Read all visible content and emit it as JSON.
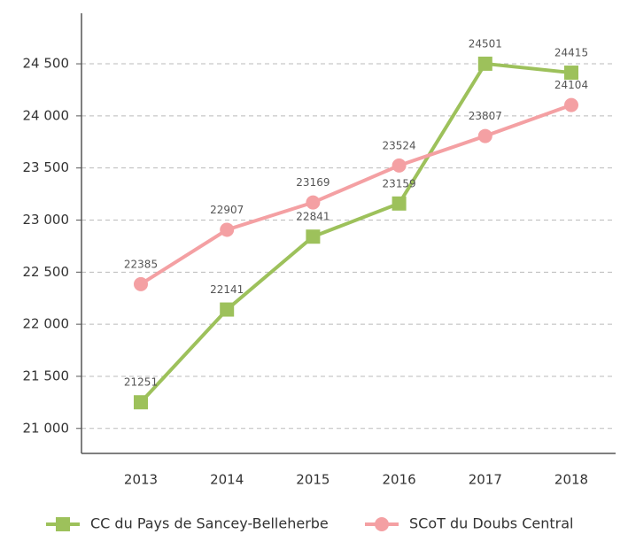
{
  "chart_data": {
    "type": "line",
    "categories": [
      "2013",
      "2014",
      "2015",
      "2016",
      "2017",
      "2018"
    ],
    "series": [
      {
        "name": "CC du Pays de Sancey-Belleherbe",
        "color": "#9dc15b",
        "marker": "square",
        "values": [
          21251,
          22141,
          22841,
          23159,
          24501,
          24415
        ]
      },
      {
        "name": "SCoT du Doubs Central",
        "color": "#f4a0a3",
        "marker": "circle",
        "values": [
          22385,
          22907,
          23169,
          23524,
          23807,
          24104
        ]
      }
    ],
    "ylim": [
      20760,
      24985
    ],
    "yticks": [
      {
        "value": 21000,
        "label": "21 000"
      },
      {
        "value": 21500,
        "label": "21 500"
      },
      {
        "value": 22000,
        "label": "22 000"
      },
      {
        "value": 22500,
        "label": "22 500"
      },
      {
        "value": 23000,
        "label": "23 000"
      },
      {
        "value": 23500,
        "label": "23 500"
      },
      {
        "value": 24000,
        "label": "24 000"
      },
      {
        "value": 24500,
        "label": "24 500"
      }
    ],
    "grid": true,
    "legend": "bottom"
  }
}
